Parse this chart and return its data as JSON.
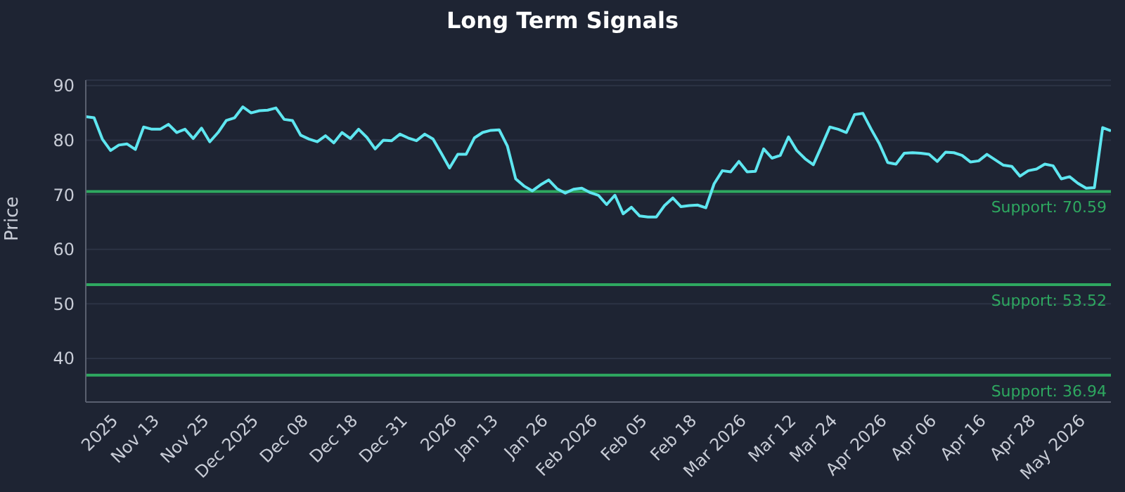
{
  "chart_data": {
    "type": "line",
    "title": "Long Term Signals",
    "ylabel": "Price",
    "categories": [
      null,
      null,
      null,
      null,
      "2025",
      null,
      null,
      null,
      null,
      "Nov 13",
      null,
      null,
      null,
      null,
      null,
      "Nov 25",
      null,
      null,
      null,
      null,
      null,
      "Dec 2025",
      null,
      null,
      null,
      null,
      null,
      "Dec 08",
      null,
      null,
      null,
      null,
      null,
      "Dec 18",
      null,
      null,
      null,
      null,
      null,
      "Dec 31",
      null,
      null,
      null,
      null,
      null,
      "2026",
      null,
      null,
      null,
      null,
      "Jan 13",
      null,
      null,
      null,
      null,
      null,
      "Jan 26",
      null,
      null,
      null,
      null,
      null,
      "Feb 2026",
      null,
      null,
      null,
      null,
      null,
      "Feb 05",
      null,
      null,
      null,
      null,
      null,
      "Feb 18",
      null,
      null,
      null,
      null,
      null,
      "Mar 2026",
      null,
      null,
      null,
      null,
      null,
      "Mar 12",
      null,
      null,
      null,
      null,
      "Mar 24",
      null,
      null,
      null,
      null,
      null,
      "Apr 2026",
      null,
      null,
      null,
      null,
      null,
      "Apr 06",
      null,
      null,
      null,
      null,
      null,
      "Apr 16",
      null,
      null,
      null,
      null,
      null,
      "Apr 28",
      null,
      null,
      null,
      null,
      null,
      "May 2026",
      null,
      null,
      null
    ],
    "values": [
      84.3,
      84.1,
      80.2,
      78.1,
      79.1,
      79.3,
      78.3,
      82.4,
      82,
      82,
      82.9,
      81.4,
      82,
      80.3,
      82.2,
      79.7,
      81.4,
      83.6,
      84.1,
      86.1,
      85,
      85.4,
      85.5,
      85.9,
      83.8,
      83.6,
      80.9,
      80.2,
      79.7,
      80.8,
      79.5,
      81.4,
      80.3,
      82,
      80.5,
      78.4,
      80,
      79.9,
      81.1,
      80.4,
      79.9,
      81.1,
      80.2,
      77.6,
      74.9,
      77.4,
      77.4,
      80.4,
      81.4,
      81.8,
      81.9,
      78.9,
      72.9,
      71.6,
      70.7,
      71.8,
      72.7,
      71.1,
      70.3,
      71,
      71.2,
      70.4,
      69.9,
      68.2,
      69.9,
      66.5,
      67.7,
      66.1,
      65.9,
      65.9,
      68,
      69.4,
      67.8,
      68,
      68.1,
      67.6,
      72,
      74.4,
      74.2,
      76.1,
      74.2,
      74.3,
      78.4,
      76.7,
      77.2,
      80.6,
      78.1,
      76.6,
      75.5,
      78.9,
      82.4,
      82,
      81.4,
      84.7,
      84.9,
      82,
      79.3,
      75.9,
      75.6,
      77.6,
      77.7,
      77.6,
      77.4,
      76.1,
      77.8,
      77.7,
      77.2,
      76,
      76.2,
      77.4,
      76.4,
      75.4,
      75.2,
      73.4,
      74.4,
      74.7,
      75.6,
      75.3,
      72.9,
      73.3,
      72.1,
      71.2,
      71.3,
      82.3,
      81.7
    ],
    "color": "#5ee6f0",
    "marker": "none",
    "ylim": [
      32,
      91
    ],
    "yticks": [
      40,
      50,
      60,
      70,
      80,
      90
    ],
    "grid": "y",
    "ref_lines": [
      {
        "axis": "y",
        "value": 70.59,
        "label": "Support: 70.59",
        "color": "#2ea860"
      },
      {
        "axis": "y",
        "value": 53.52,
        "label": "Support: 53.52",
        "color": "#2ea860"
      },
      {
        "axis": "y",
        "value": 36.94,
        "label": "Support: 36.94",
        "color": "#2ea860"
      }
    ]
  }
}
